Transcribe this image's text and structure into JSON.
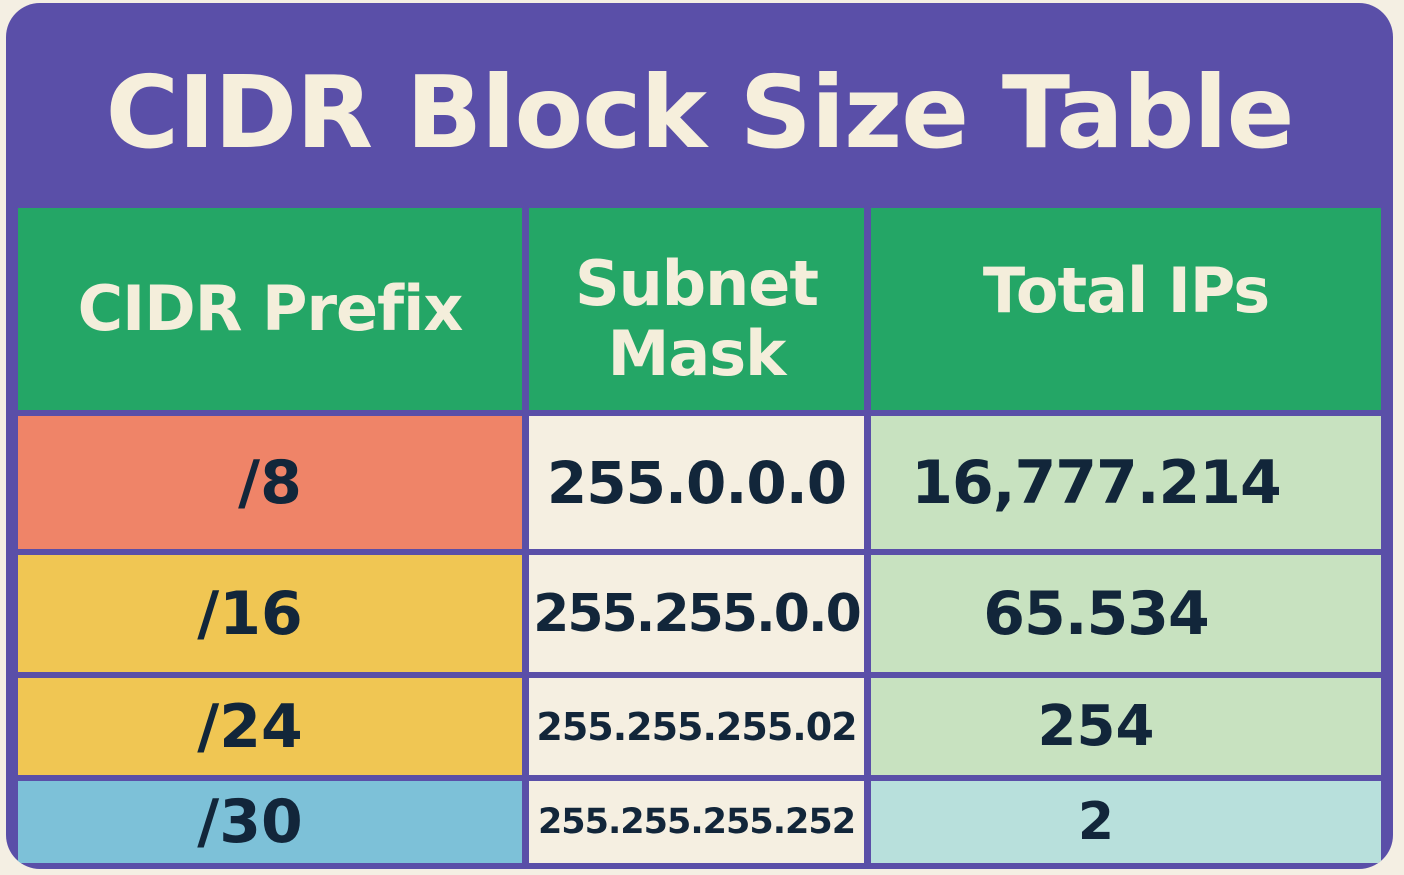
{
  "title": "CIDR Block Size Table",
  "headers": {
    "prefix": "CIDR Prefix",
    "mask": "Subnet Mask",
    "ips": "Total IPs"
  },
  "rows": [
    {
      "prefix": "/8",
      "mask": "255.0.0.0",
      "ips": "16,777.214",
      "color": "#ef8468"
    },
    {
      "prefix": "/16",
      "mask": "255.255.0.0",
      "ips": "65.534",
      "color": "#f0c653"
    },
    {
      "prefix": "/24",
      "mask": "255.255.255.02",
      "ips": "254",
      "color": "#f0c653"
    },
    {
      "prefix": "/30",
      "mask": "255.255.255.252",
      "ips": "2",
      "color": "#7dc1d8"
    }
  ],
  "colors": {
    "frame": "#5a4fa8",
    "header": "#24a666",
    "header_text": "#f4eedb",
    "mask_bg": "#f5efe1",
    "ips_bg": "#c8e2c0",
    "ips_last_bg": "#b8e0dc",
    "body_text": "#12263a"
  }
}
